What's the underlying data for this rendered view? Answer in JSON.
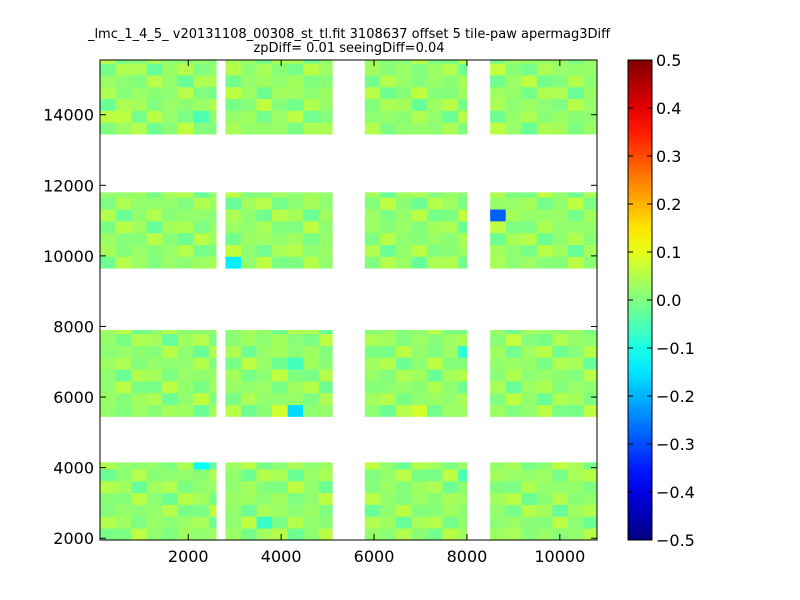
{
  "chart_data": {
    "type": "heatmap",
    "title_line1": "_lmc_1_4_5_ v20131108_00308_st_tl.fit 3108637 offset 5 tile-paw apermag3Diff",
    "title_line2": "zpDiff= 0.01 seeingDiff=0.04",
    "xlabel": "",
    "ylabel": "",
    "xlim": [
      100,
      10800
    ],
    "ylim": [
      1950,
      15550
    ],
    "xticks": [
      2000,
      4000,
      6000,
      8000,
      10000
    ],
    "yticks": [
      2000,
      4000,
      6000,
      8000,
      10000,
      12000,
      14000
    ],
    "colorbar": {
      "min": -0.5,
      "max": 0.5,
      "ticks": [
        -0.5,
        -0.4,
        -0.3,
        -0.2,
        -0.1,
        0.0,
        0.1,
        0.2,
        0.3,
        0.4,
        0.5
      ],
      "colormap": "jet"
    },
    "grid": false,
    "cell_size": 335,
    "panel_columns_x": [
      [
        100,
        2600
      ],
      [
        2800,
        5100
      ],
      [
        5800,
        8000
      ],
      [
        8500,
        10800
      ]
    ],
    "panel_rows_y": [
      [
        1950,
        4150
      ],
      [
        5450,
        7900
      ],
      [
        9650,
        11800
      ],
      [
        13450,
        15550
      ]
    ],
    "base_value": 0.02,
    "outliers": [
      {
        "x": 8680,
        "y": 11220,
        "value": -0.28
      },
      {
        "x": 4240,
        "y": 5540,
        "value": -0.16
      },
      {
        "x": 2950,
        "y": 9870,
        "value": -0.14
      },
      {
        "x": 2240,
        "y": 4000,
        "value": -0.12
      },
      {
        "x": 7950,
        "y": 7190,
        "value": -0.08
      },
      {
        "x": 3950,
        "y": 5540,
        "value": 0.08
      },
      {
        "x": 6990,
        "y": 5540,
        "value": 0.08
      },
      {
        "x": 4180,
        "y": 10280,
        "value": 0.05
      },
      {
        "x": 2940,
        "y": 15390,
        "value": 0.05
      },
      {
        "x": 480,
        "y": 13900,
        "value": 0.06
      },
      {
        "x": 3750,
        "y": 2540,
        "value": -0.07
      },
      {
        "x": 8000,
        "y": 3800,
        "value": -0.05
      },
      {
        "x": 4200,
        "y": 7070,
        "value": -0.06
      },
      {
        "x": 2300,
        "y": 13900,
        "value": -0.05
      },
      {
        "x": 10300,
        "y": 3940,
        "value": 0.04
      }
    ]
  }
}
